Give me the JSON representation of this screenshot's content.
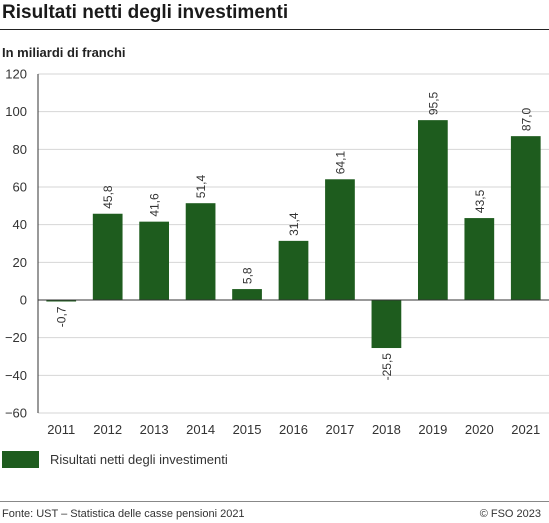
{
  "title": "Risultati netti degli investimenti",
  "subtitle": "In miliardi di franchi",
  "source": "Fonte: UST – Statistica delle casse pensioni 2021",
  "copyright": "© FSO 2023",
  "colors": {
    "bar": "#1e5c1e",
    "grid": "#d6d6d6",
    "axis": "#333333"
  },
  "chart_data": {
    "type": "bar",
    "title": "Risultati netti degli investimenti",
    "ylabel": "In miliardi di franchi",
    "xlabel": "",
    "categories": [
      "2011",
      "2012",
      "2013",
      "2014",
      "2015",
      "2016",
      "2017",
      "2018",
      "2019",
      "2020",
      "2021"
    ],
    "series": [
      {
        "name": "Risultati netti degli investimenti",
        "values": [
          -0.7,
          45.8,
          41.6,
          51.4,
          5.8,
          31.4,
          64.1,
          -25.5,
          95.5,
          43.5,
          87.0
        ],
        "labels": [
          "-0,7",
          "45,8",
          "41,6",
          "51,4",
          "5,8",
          "31,4",
          "64,1",
          "-25,5",
          "95,5",
          "43,5",
          "87,0"
        ]
      }
    ],
    "ylim": [
      -60,
      120
    ],
    "yticks": [
      -60,
      -40,
      -20,
      0,
      20,
      40,
      60,
      80,
      100,
      120
    ],
    "ytick_labels": [
      "−60",
      "−40",
      "−20",
      "0",
      "20",
      "40",
      "60",
      "80",
      "100",
      "120"
    ],
    "grid": true,
    "legend": "bottom-left"
  }
}
